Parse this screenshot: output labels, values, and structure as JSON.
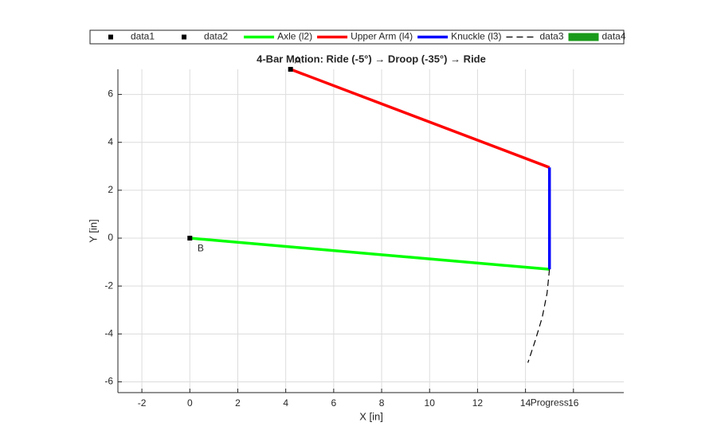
{
  "chart_data": {
    "type": "line",
    "title": "4-Bar Motion: Ride (-5°) → Droop (-35°) → Ride",
    "xlabel": "X [in]",
    "ylabel": "Y [in]",
    "xlim": [
      -3,
      18.1
    ],
    "ylim": [
      -6.45,
      7.05
    ],
    "xticks": [
      -2,
      0,
      2,
      4,
      6,
      8,
      10,
      12,
      14,
      16
    ],
    "yticks": [
      -6,
      -4,
      -2,
      0,
      2,
      4,
      6
    ],
    "grid": true,
    "legend": "top",
    "series": [
      {
        "name": "data1",
        "style": "marker",
        "color": "#000000",
        "x": [
          4.2
        ],
        "y": [
          7.05
        ]
      },
      {
        "name": "data2",
        "style": "marker",
        "color": "#000000",
        "x": [
          0
        ],
        "y": [
          0
        ]
      },
      {
        "name": "Axle (l2)",
        "style": "line",
        "color": "#00ff00",
        "x": [
          0,
          15
        ],
        "y": [
          0,
          -1.3
        ]
      },
      {
        "name": "Upper Arm (l4)",
        "style": "line",
        "color": "#ff0000",
        "x": [
          4.2,
          15
        ],
        "y": [
          7.05,
          2.95
        ]
      },
      {
        "name": "Knuckle (l3)",
        "style": "line",
        "color": "#0000ff",
        "x": [
          15,
          15
        ],
        "y": [
          -1.3,
          2.95
        ]
      },
      {
        "name": "data3",
        "style": "dashed",
        "color": "#000000",
        "x": [
          15,
          14.9,
          14.7,
          14.4,
          14.1
        ],
        "y": [
          -1.3,
          -2.3,
          -3.3,
          -4.3,
          -5.2
        ]
      },
      {
        "name": "data4",
        "style": "patch",
        "color": "#1a9a1a",
        "x": [],
        "y": []
      }
    ],
    "annotations": [
      {
        "text": "A",
        "x": 4.5,
        "y": 7.4
      },
      {
        "text": "B",
        "x": 0.45,
        "y": -0.45
      },
      {
        "text": "Progress",
        "x": 15,
        "y": -6.9
      }
    ]
  }
}
